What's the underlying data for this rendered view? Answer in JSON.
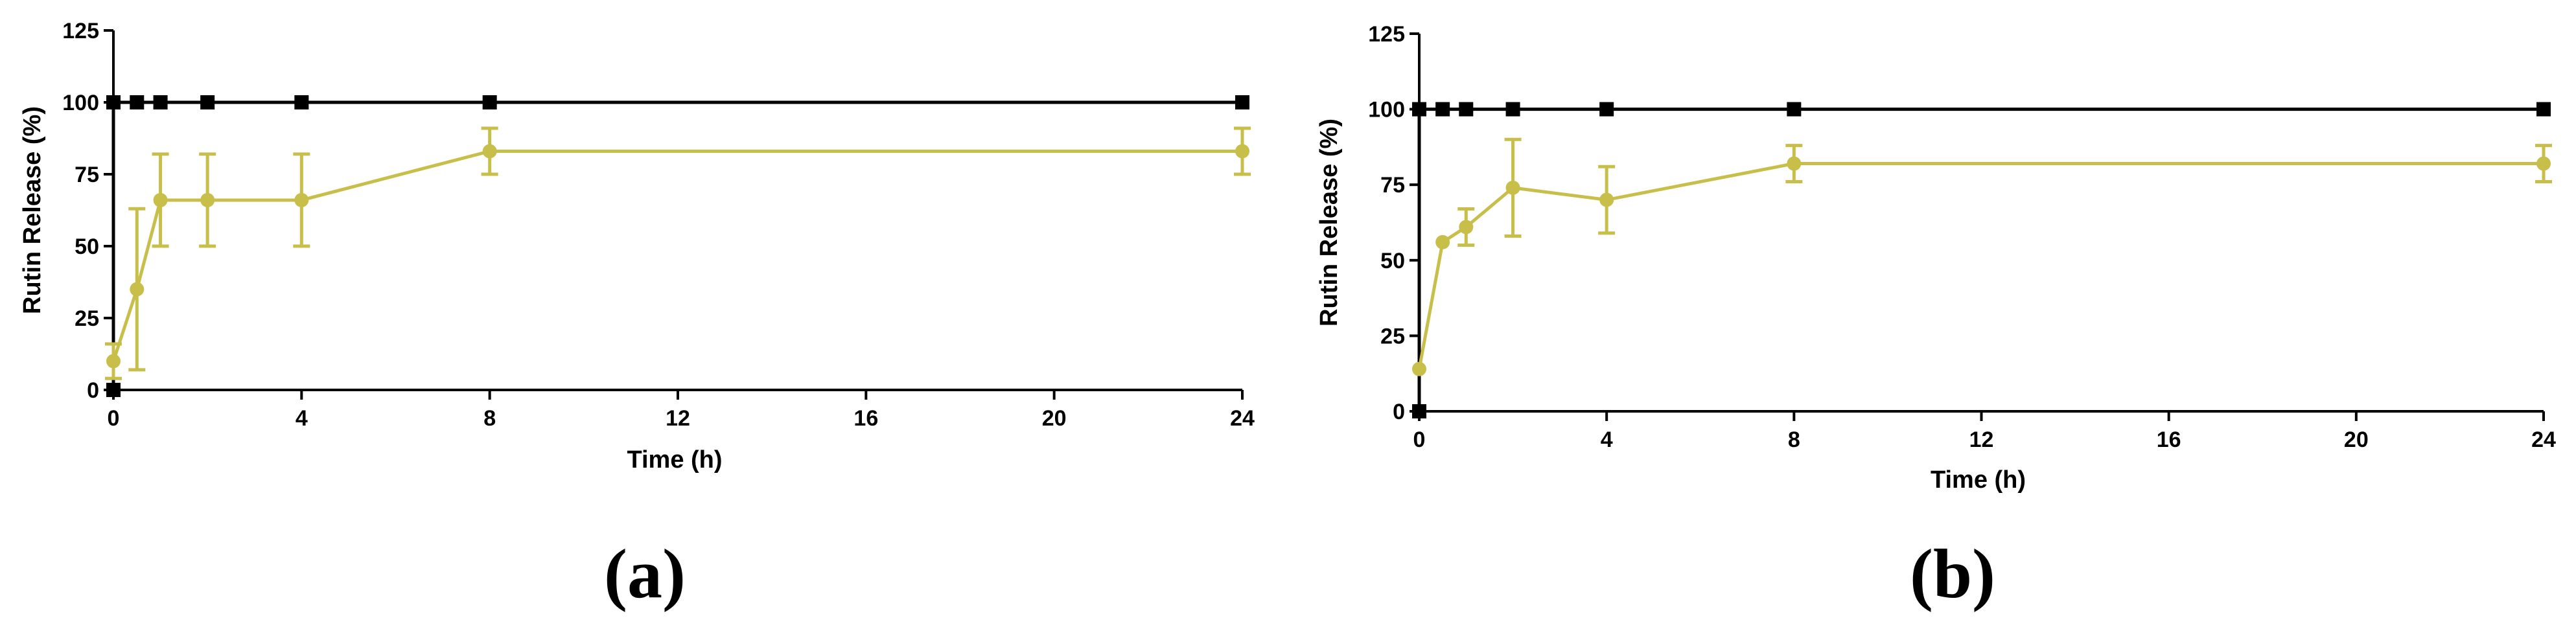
{
  "chart_data": [
    {
      "type": "line",
      "panel_label": "(a)",
      "xlabel": "Time (h)",
      "ylabel": "Rutin Release (%)",
      "xlim": [
        0,
        24
      ],
      "ylim": [
        0,
        125
      ],
      "x_ticks": [
        "0",
        "4",
        "8",
        "12",
        "16",
        "20",
        "24"
      ],
      "y_ticks": [
        "0",
        "25",
        "50",
        "75",
        "100",
        "125"
      ],
      "grid": false,
      "series": [
        {
          "color": "#000000",
          "marker": "square",
          "x": [
            0,
            0,
            0.5,
            1,
            2,
            4,
            8,
            24
          ],
          "y": [
            0,
            100,
            100,
            100,
            100,
            100,
            100,
            100
          ]
        },
        {
          "color": "#c8be4a",
          "marker": "circle",
          "x": [
            0,
            0.5,
            1,
            2,
            4,
            8,
            24
          ],
          "y": [
            10,
            35,
            66,
            66,
            66,
            83,
            83
          ],
          "err": [
            6,
            28,
            16,
            16,
            16,
            8,
            8
          ]
        }
      ]
    },
    {
      "type": "line",
      "panel_label": "(b)",
      "xlabel": "Time (h)",
      "ylabel": "Rutin Release (%)",
      "xlim": [
        0,
        24
      ],
      "ylim": [
        0,
        125
      ],
      "x_ticks": [
        "0",
        "4",
        "8",
        "12",
        "16",
        "20",
        "24"
      ],
      "y_ticks": [
        "0",
        "25",
        "50",
        "75",
        "100",
        "125"
      ],
      "grid": false,
      "series": [
        {
          "color": "#000000",
          "marker": "square",
          "x": [
            0,
            0,
            0.5,
            1,
            2,
            4,
            8,
            24
          ],
          "y": [
            0,
            100,
            100,
            100,
            100,
            100,
            100,
            100
          ]
        },
        {
          "color": "#c8be4a",
          "marker": "circle",
          "x": [
            0,
            0.5,
            1,
            2,
            4,
            8,
            24
          ],
          "y": [
            14,
            56,
            61,
            74,
            70,
            82,
            82
          ],
          "err": [
            0,
            0,
            6,
            16,
            11,
            6,
            6
          ]
        }
      ]
    }
  ]
}
